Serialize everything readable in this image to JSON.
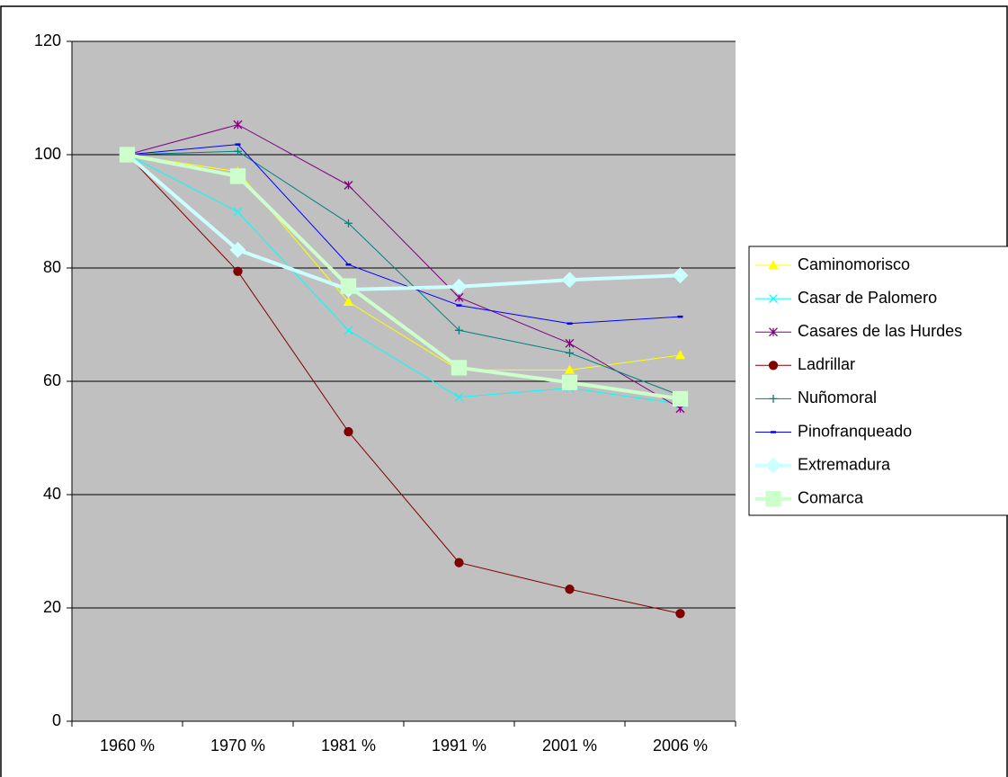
{
  "chart_data": {
    "type": "line",
    "categories": [
      "1960 %",
      "1970 %",
      "1981 %",
      "1991 %",
      "2001 %",
      "2006 %"
    ],
    "ylim": [
      0,
      120
    ],
    "yticks": [
      0,
      20,
      40,
      60,
      80,
      100,
      120
    ],
    "grid": true,
    "plot_background": "#c0c0c0",
    "legend": "right",
    "series": [
      {
        "name": "Caminomorisco",
        "color": "#ffff00",
        "marker": "triangle",
        "width": 1,
        "values": [
          100,
          97,
          74,
          62,
          62,
          64.6
        ]
      },
      {
        "name": "Casar de Palomero",
        "color": "#00ffff",
        "marker": "x",
        "width": 1,
        "values": [
          100,
          89.9,
          69,
          57.2,
          58.8,
          56
        ]
      },
      {
        "name": "Casares de las Hurdes",
        "color": "#800080",
        "marker": "star",
        "width": 1,
        "values": [
          100,
          105.3,
          94.6,
          74.8,
          66.7,
          55.2
        ]
      },
      {
        "name": "Ladrillar",
        "color": "#800000",
        "marker": "circle",
        "width": 1,
        "values": [
          100,
          79.4,
          51.1,
          28,
          23.3,
          19
        ]
      },
      {
        "name": "Nuñomoral",
        "color": "#008080",
        "marker": "plus",
        "width": 1,
        "values": [
          100,
          100.6,
          87.9,
          69,
          65,
          57.5
        ]
      },
      {
        "name": "Pinofranqueado",
        "color": "#0000ff",
        "marker": "dash",
        "width": 1,
        "values": [
          100,
          101.8,
          80.6,
          73.4,
          70.2,
          71.4
        ]
      },
      {
        "name": "Extremadura",
        "color": "#ccffff",
        "marker": "diamond",
        "width": 4,
        "values": [
          100,
          83.2,
          76.2,
          76.7,
          77.9,
          78.7
        ]
      },
      {
        "name": "Comarca",
        "color": "#ccffcc",
        "marker": "square",
        "width": 4,
        "values": [
          100,
          96.2,
          76.8,
          62.4,
          59.8,
          56.9
        ]
      }
    ]
  }
}
